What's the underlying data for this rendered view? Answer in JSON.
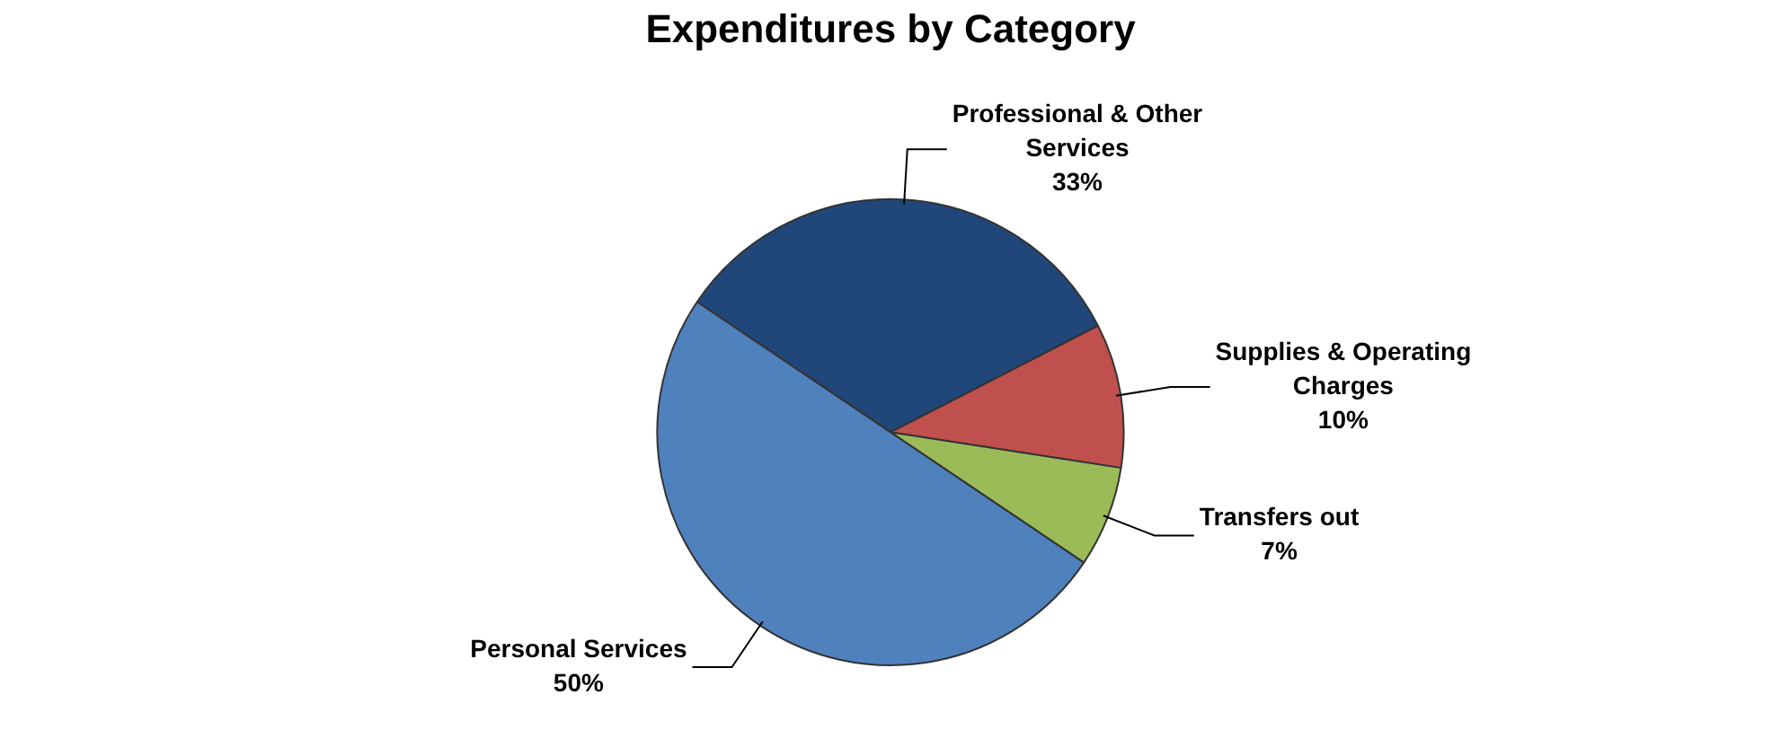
{
  "chart_data": {
    "type": "pie",
    "title": "Expenditures by Category",
    "categories": [
      "Professional & Other Services",
      "Supplies & Operating Charges",
      "Transfers out",
      "Personal Services"
    ],
    "values": [
      33,
      10,
      7,
      50
    ],
    "value_labels": [
      "33%",
      "10%",
      "7%",
      "50%"
    ],
    "colors": [
      "#21477a",
      "#c0504d",
      "#9bbb59",
      "#4f81bd"
    ],
    "legend": false
  }
}
